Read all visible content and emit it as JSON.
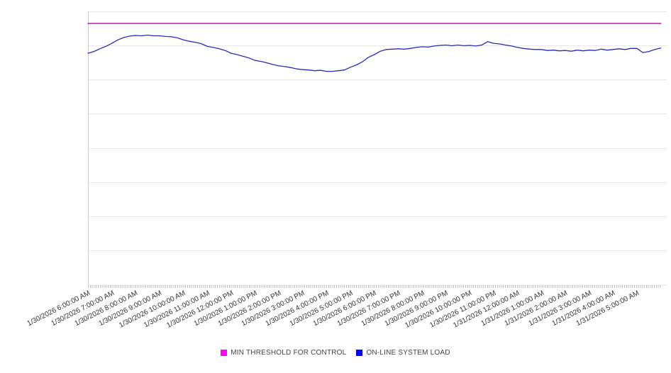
{
  "chart_data": {
    "type": "line",
    "x_axis": {
      "tick_labels": [
        "1/30/2026 6:00:00 AM",
        "1/30/2026 7:00:00 AM",
        "1/30/2026 8:00:00 AM",
        "1/30/2026 9:00:00 AM",
        "1/30/2026 10:00:00 AM",
        "1/30/2026 11:00:00 AM",
        "1/30/2026 12:00:00 PM",
        "1/30/2026 1:00:00 PM",
        "1/30/2026 2:00:00 PM",
        "1/30/2026 3:00:00 PM",
        "1/30/2026 4:00:00 PM",
        "1/30/2026 5:00:00 PM",
        "1/30/2026 6:00:00 PM",
        "1/30/2026 7:00:00 PM",
        "1/30/2026 8:00:00 PM",
        "1/30/2026 9:00:00 PM",
        "1/30/2026 10:00:00 PM",
        "1/30/2026 11:00:00 PM",
        "1/31/2026 12:00:00 AM",
        "1/31/2026 1:00:00 AM",
        "1/31/2026 2:00:00 AM",
        "1/31/2026 3:00:00 AM",
        "1/31/2026 4:00:00 AM",
        "1/31/2026 5:00:00 AM"
      ],
      "labels_rotation_deg": -27,
      "range_hours": 24,
      "minor_tick_interval_minutes": 5
    },
    "y_axis": {
      "min": 0,
      "max": 8,
      "gridline_step": 1,
      "tick_labels_visible": false
    },
    "grid": "horizontal-only",
    "legend_position": "bottom-center",
    "series": [
      {
        "name": "MIN THRESHOLD FOR CONTROL",
        "type": "constant-line",
        "swatch_color": "#ff00ff",
        "line_color": "#cc22cc",
        "value": 7.64
      },
      {
        "name": "ON-LINE SYSTEM LOAD",
        "type": "line",
        "swatch_color": "#0000ff",
        "line_color": "#2a2ac0",
        "x_start_hour": 0,
        "x_step_hours": 0.25,
        "values": [
          6.77,
          6.82,
          6.9,
          6.97,
          7.06,
          7.16,
          7.23,
          7.27,
          7.29,
          7.28,
          7.3,
          7.28,
          7.28,
          7.26,
          7.25,
          7.22,
          7.16,
          7.12,
          7.09,
          7.05,
          6.97,
          6.94,
          6.9,
          6.85,
          6.77,
          6.73,
          6.68,
          6.63,
          6.56,
          6.53,
          6.49,
          6.44,
          6.4,
          6.38,
          6.35,
          6.31,
          6.29,
          6.28,
          6.26,
          6.27,
          6.24,
          6.24,
          6.26,
          6.28,
          6.36,
          6.43,
          6.52,
          6.65,
          6.73,
          6.83,
          6.88,
          6.89,
          6.9,
          6.89,
          6.91,
          6.94,
          6.96,
          6.95,
          6.98,
          7.0,
          7.01,
          6.99,
          7.01,
          6.99,
          7.0,
          6.98,
          7.01,
          7.11,
          7.06,
          7.04,
          7.01,
          6.98,
          6.94,
          6.91,
          6.89,
          6.88,
          6.88,
          6.85,
          6.86,
          6.84,
          6.85,
          6.83,
          6.86,
          6.84,
          6.86,
          6.85,
          6.89,
          6.86,
          6.88,
          6.9,
          6.88,
          6.91,
          6.91,
          6.79,
          6.82,
          6.88,
          6.92
        ]
      }
    ]
  },
  "colors": {
    "background": "#ffffff",
    "gridline": "#e8e8e8",
    "axis_line": "#cccccc",
    "minor_tick": "#c0c0c0",
    "label_text": "#333333",
    "legend_text": "#444444"
  }
}
